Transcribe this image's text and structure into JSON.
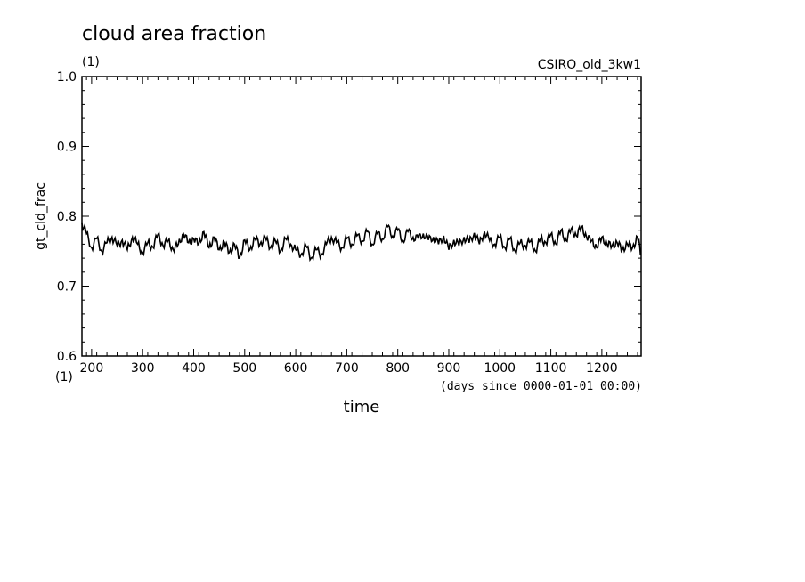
{
  "chart_data": {
    "type": "line",
    "title": "cloud area fraction",
    "title_unit": "(1)",
    "dataset_label": "CSIRO_old_3kw1",
    "ylabel": "gt_cld_frac",
    "xlabel": "time",
    "x_unit": "(1)",
    "x_note": "(days since 0000-01-01 00:00)",
    "xlim": [
      181,
      1277
    ],
    "ylim": [
      0.6,
      1.0
    ],
    "x_ticks": [
      200,
      300,
      400,
      500,
      600,
      700,
      800,
      900,
      1000,
      1100,
      1200
    ],
    "y_ticks": [
      "0.6",
      "0.7",
      "0.8",
      "0.9",
      "1.0"
    ],
    "grid": false,
    "series": [
      {
        "color": "#000000",
        "x": [
          181,
          190,
          200,
          210,
          220,
          230,
          240,
          250,
          260,
          270,
          280,
          290,
          300,
          310,
          320,
          330,
          340,
          350,
          360,
          370,
          380,
          390,
          400,
          410,
          420,
          430,
          440,
          450,
          460,
          470,
          480,
          490,
          500,
          510,
          520,
          530,
          540,
          550,
          560,
          570,
          580,
          590,
          600,
          610,
          620,
          630,
          640,
          650,
          660,
          670,
          680,
          690,
          700,
          710,
          720,
          730,
          740,
          750,
          760,
          770,
          780,
          790,
          800,
          810,
          820,
          830,
          840,
          850,
          860,
          870,
          880,
          890,
          900,
          910,
          920,
          930,
          940,
          950,
          960,
          970,
          980,
          990,
          1000,
          1010,
          1020,
          1030,
          1040,
          1050,
          1060,
          1070,
          1080,
          1090,
          1100,
          1110,
          1120,
          1130,
          1140,
          1150,
          1160,
          1170,
          1180,
          1190,
          1200,
          1210,
          1220,
          1230,
          1240,
          1250,
          1260,
          1270,
          1277
        ],
        "y": [
          0.79,
          0.775,
          0.755,
          0.768,
          0.75,
          0.762,
          0.77,
          0.758,
          0.766,
          0.752,
          0.77,
          0.76,
          0.748,
          0.762,
          0.756,
          0.774,
          0.758,
          0.765,
          0.752,
          0.76,
          0.775,
          0.762,
          0.768,
          0.76,
          0.778,
          0.755,
          0.77,
          0.752,
          0.763,
          0.748,
          0.76,
          0.74,
          0.766,
          0.752,
          0.768,
          0.76,
          0.77,
          0.755,
          0.765,
          0.75,
          0.768,
          0.76,
          0.752,
          0.745,
          0.758,
          0.74,
          0.752,
          0.745,
          0.76,
          0.77,
          0.762,
          0.755,
          0.768,
          0.76,
          0.772,
          0.765,
          0.778,
          0.76,
          0.775,
          0.768,
          0.785,
          0.772,
          0.78,
          0.765,
          0.778,
          0.77,
          0.768,
          0.775,
          0.766,
          0.77,
          0.76,
          0.772,
          0.752,
          0.766,
          0.758,
          0.77,
          0.762,
          0.776,
          0.76,
          0.778,
          0.765,
          0.76,
          0.77,
          0.755,
          0.768,
          0.75,
          0.762,
          0.758,
          0.764,
          0.75,
          0.768,
          0.762,
          0.774,
          0.76,
          0.78,
          0.765,
          0.782,
          0.772,
          0.785,
          0.77,
          0.765,
          0.755,
          0.77,
          0.76,
          0.758,
          0.762,
          0.752,
          0.76,
          0.755,
          0.77,
          0.745
        ]
      }
    ]
  }
}
